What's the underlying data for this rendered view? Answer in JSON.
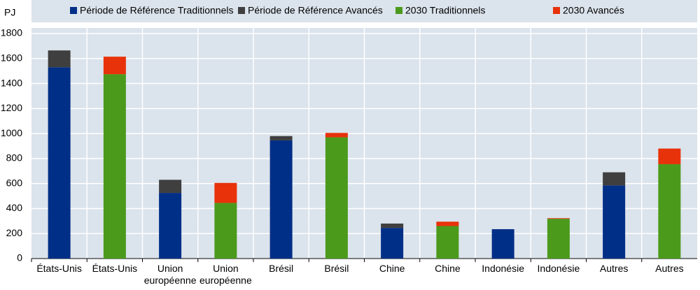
{
  "chart_data": {
    "type": "stacked_bar",
    "y_label": "PJ",
    "categories": [
      "États-Unis",
      "États-Unis",
      "Union européenne",
      "Union européenne",
      "Brésil",
      "Brésil",
      "Chine",
      "Chine",
      "Indonésie",
      "Indonésie",
      "Autres",
      "Autres"
    ],
    "series": [
      {
        "name": "Période de Référence Traditionnels",
        "color": "#002f87",
        "values": [
          1530,
          null,
          525,
          null,
          945,
          null,
          245,
          null,
          235,
          null,
          585,
          null
        ]
      },
      {
        "name": "Période de Référence Avancés",
        "color": "#3f3f3f",
        "values": [
          135,
          null,
          105,
          null,
          35,
          null,
          35,
          null,
          null,
          null,
          105,
          null
        ]
      },
      {
        "name": "2030 Traditionnels",
        "color": "#4b9a1c",
        "values": [
          null,
          1475,
          null,
          445,
          null,
          970,
          null,
          260,
          null,
          318,
          null,
          755
        ]
      },
      {
        "name": "2030 Avancés",
        "color": "#e8320a",
        "values": [
          null,
          140,
          null,
          160,
          null,
          35,
          null,
          35,
          null,
          5,
          null,
          125
        ]
      }
    ],
    "ylim": [
      0,
      1800
    ],
    "yticks": [
      0,
      200,
      400,
      600,
      800,
      1000,
      1200,
      1400,
      1600,
      1800
    ],
    "grid": true
  }
}
